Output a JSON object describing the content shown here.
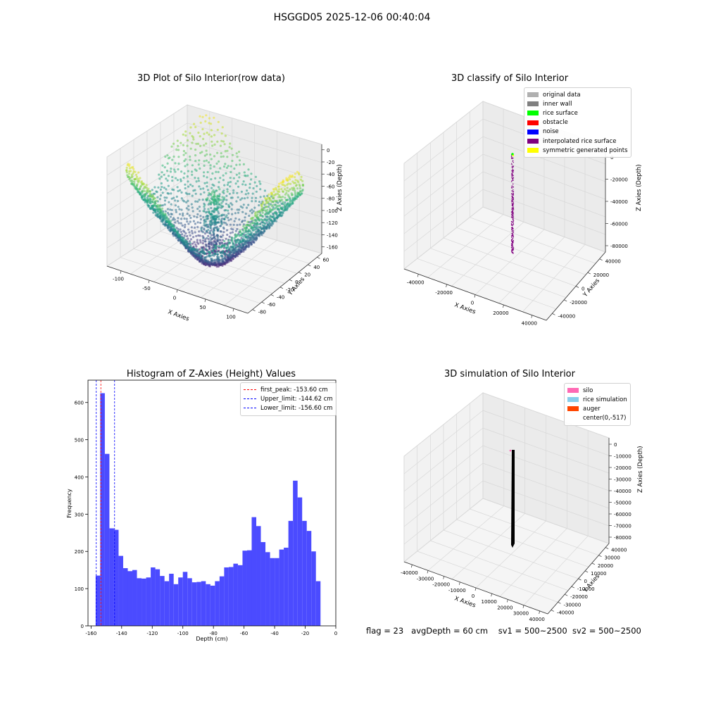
{
  "suptitle": "HSGGD05 2025-12-06 00:40:04",
  "chart_data": [
    {
      "type": "scatter",
      "title": "3D Plot of Silo Interior(row data)",
      "xlabel": "X Axies",
      "ylabel": "Y Axies",
      "zlabel": "Z Axies (Depth)",
      "x_ticks": [
        "-100",
        "-50",
        "0",
        "50",
        "100"
      ],
      "y_ticks": [
        "-80",
        "-60",
        "-40",
        "-20",
        "0",
        "20",
        "40",
        "60"
      ],
      "z_ticks": [
        "0",
        "-20",
        "-40",
        "-60",
        "-80",
        "-100",
        "-120",
        "-140",
        "-160"
      ],
      "xlim": [
        -130,
        130
      ],
      "ylim": [
        -80,
        60
      ],
      "zlim": [
        -165,
        0
      ],
      "colormap": "viridis"
    },
    {
      "type": "scatter",
      "title": "3D classify of Silo Interior",
      "xlabel": "X Axies",
      "ylabel": "Y Axies",
      "zlabel": "Z Axies (Depth)",
      "x_ticks": [
        "-40000",
        "-20000",
        "0",
        "20000",
        "40000"
      ],
      "y_ticks": [
        "-40000",
        "-20000",
        "0",
        "20000",
        "40000"
      ],
      "z_ticks": [
        "0",
        "-20000",
        "-40000",
        "-60000",
        "-80000"
      ],
      "legend": [
        {
          "label": "original data",
          "color": "#b0b0b0"
        },
        {
          "label": "inner wall",
          "color": "#808080"
        },
        {
          "label": "rice surface",
          "color": "#00ff00"
        },
        {
          "label": "obstacle",
          "color": "#ff0000"
        },
        {
          "label": "noise",
          "color": "#0000ff"
        },
        {
          "label": "interpolated rice surface",
          "color": "#800080"
        },
        {
          "label": "symmetric generated points",
          "color": "#ffff00"
        }
      ],
      "legend_position": "top-right"
    },
    {
      "type": "bar",
      "title": "Histogram of Z-Axies (Height) Values",
      "xlabel": "Depth (cm)",
      "ylabel": "Frequency",
      "bar_color": "#4b4bff",
      "bin_start": -157,
      "bin_width": 3,
      "values": [
        135,
        625,
        462,
        262,
        258,
        188,
        155,
        147,
        150,
        128,
        127,
        130,
        157,
        152,
        134,
        120,
        140,
        112,
        130,
        145,
        128,
        117,
        118,
        120,
        112,
        108,
        120,
        133,
        157,
        158,
        167,
        163,
        202,
        203,
        292,
        268,
        225,
        198,
        182,
        182,
        205,
        210,
        282,
        390,
        345,
        282,
        255,
        200,
        120
      ],
      "xlim": [
        -162,
        0
      ],
      "ylim": [
        0,
        660
      ],
      "x_ticks": [
        -160,
        -140,
        -120,
        -100,
        -80,
        -60,
        -40,
        -20,
        0
      ],
      "y_ticks": [
        0,
        100,
        200,
        300,
        400,
        500,
        600
      ],
      "vlines": [
        {
          "label": "first_peak: -153.60 cm",
          "x": -153.6,
          "color": "#ff0000"
        },
        {
          "label": "Upper_limit: -144.62 cm",
          "x": -144.62,
          "color": "#0000ff"
        },
        {
          "label": "Lower_limit: -156.60 cm",
          "x": -156.6,
          "color": "#0000ff"
        }
      ],
      "legend_position": "top-right"
    },
    {
      "type": "scatter",
      "title": "3D simulation of Silo Interior",
      "xlabel": "X Axies",
      "ylabel": "Y Axies",
      "zlabel": "Z Axies (Depth)",
      "x_ticks": [
        "-40000",
        "-30000",
        "-20000",
        "-10000",
        "0",
        "10000",
        "20000",
        "30000",
        "40000"
      ],
      "y_ticks": [
        "-40000",
        "-30000",
        "-20000",
        "-10000",
        "0",
        "10000",
        "20000",
        "30000",
        "40000"
      ],
      "z_ticks": [
        "0",
        "-10000",
        "-20000",
        "-30000",
        "-40000",
        "-50000",
        "-60000",
        "-70000",
        "-80000"
      ],
      "legend": [
        {
          "label": "silo",
          "color": "#ff69b4"
        },
        {
          "label": "rice simulation",
          "color": "#87ceeb"
        },
        {
          "label": "auger",
          "color": "#ff4500"
        },
        {
          "label": "center(0,-517)",
          "color": ""
        }
      ],
      "legend_position": "top-right"
    }
  ],
  "status": {
    "flag": "flag = 23",
    "avg": "avgDepth = 60 cm",
    "sv1": "sv1 = 500~2500",
    "sv2": "sv2 = 500~2500"
  }
}
